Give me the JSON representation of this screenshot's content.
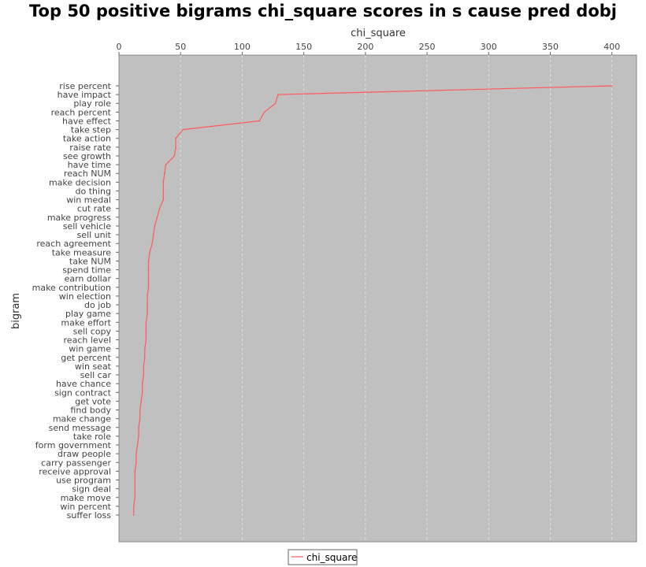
{
  "chart_data": {
    "type": "line",
    "title": "Top 50 positive bigrams chi_square scores in s cause pred dobj",
    "xlabel": "chi_square",
    "ylabel": "bigram",
    "xlim": [
      0,
      420
    ],
    "xticks": [
      0,
      50,
      100,
      150,
      200,
      250,
      300,
      350,
      400
    ],
    "x_axis_position": "top",
    "grid": true,
    "legend": "bottom-center",
    "colors": {
      "series": "#ff5a5a",
      "plot_bg": "#c0c0c0",
      "grid": "#e8e8e8"
    },
    "categories": [
      "rise percent",
      "have impact",
      "play role",
      "reach percent",
      "have effect",
      "take step",
      "take action",
      "raise rate",
      "see growth",
      "have time",
      "reach NUM",
      "make decision",
      "do thing",
      "win medal",
      "cut rate",
      "make progress",
      "sell vehicle",
      "sell unit",
      "reach agreement",
      "take measure",
      "take NUM",
      "spend time",
      "earn dollar",
      "make contribution",
      "win election",
      "do job",
      "play game",
      "make effort",
      "sell copy",
      "reach level",
      "win game",
      "get percent",
      "win seat",
      "sell car",
      "have chance",
      "sign contract",
      "get vote",
      "find body",
      "make change",
      "send message",
      "take role",
      "form government",
      "draw people",
      "carry passenger",
      "receive approval",
      "use program",
      "sign deal",
      "make move",
      "win percent",
      "suffer loss"
    ],
    "series": [
      {
        "name": "chi_square",
        "values": [
          400,
          129,
          127,
          118,
          114,
          52,
          46,
          46,
          45,
          38,
          37,
          36,
          36,
          36,
          33,
          31,
          29,
          28,
          27,
          25,
          24,
          24,
          24,
          24,
          23,
          23,
          23,
          22,
          22,
          22,
          21,
          21,
          20,
          20,
          19,
          19,
          18,
          17,
          17,
          16,
          16,
          15,
          14,
          14,
          13,
          13,
          13,
          13,
          12,
          12
        ]
      }
    ]
  }
}
